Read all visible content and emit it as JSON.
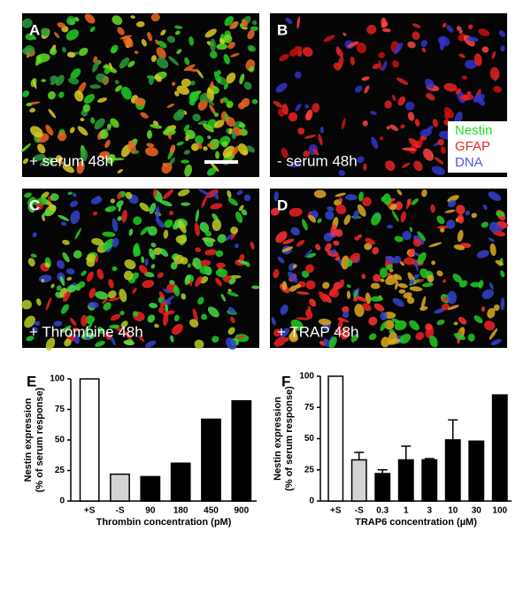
{
  "panels": [
    {
      "label": "A",
      "caption": "+ serum 48h"
    },
    {
      "label": "B",
      "caption": "- serum 48h"
    },
    {
      "label": "C",
      "caption": "+ Thrombine 48h"
    },
    {
      "label": "D",
      "caption": "+ TRAP 48h"
    }
  ],
  "legend": {
    "items": [
      "Nestin",
      "GFAP",
      "DNA"
    ],
    "colors": [
      "#22dd22",
      "#ee2222",
      "#5555dd"
    ]
  },
  "chart_data": [
    {
      "type": "bar",
      "panel_label": "E",
      "ylabel": [
        "Nestin expression",
        "(% of serum response)"
      ],
      "xlabel": "Thrombin concentration (pM)",
      "categories": [
        "+S",
        "-S",
        "90",
        "180",
        "450",
        "900"
      ],
      "values": [
        100,
        22,
        20,
        31,
        67,
        82
      ],
      "colors": [
        "#ffffff",
        "#d3d3d3",
        "#000000",
        "#000000",
        "#000000",
        "#000000"
      ],
      "ylim": [
        0,
        100
      ],
      "yticks": [
        0,
        25,
        50,
        75,
        100
      ],
      "grid": false
    },
    {
      "type": "bar",
      "panel_label": "F",
      "ylabel": [
        "Nestin expression",
        "(% of serum response)"
      ],
      "xlabel": "TRAP6 concentration (µM)",
      "categories": [
        "+S",
        "-S",
        "0.3",
        "1",
        "3",
        "10",
        "30",
        "100"
      ],
      "values": [
        100,
        33,
        22,
        33,
        33,
        49,
        48,
        85
      ],
      "errors": [
        null,
        6,
        3,
        11,
        1,
        16,
        null,
        null
      ],
      "colors": [
        "#ffffff",
        "#d3d3d3",
        "#000000",
        "#000000",
        "#000000",
        "#000000",
        "#000000",
        "#000000"
      ],
      "ylim": [
        0,
        100
      ],
      "yticks": [
        0,
        25,
        50,
        75,
        100
      ],
      "grid": false
    }
  ]
}
